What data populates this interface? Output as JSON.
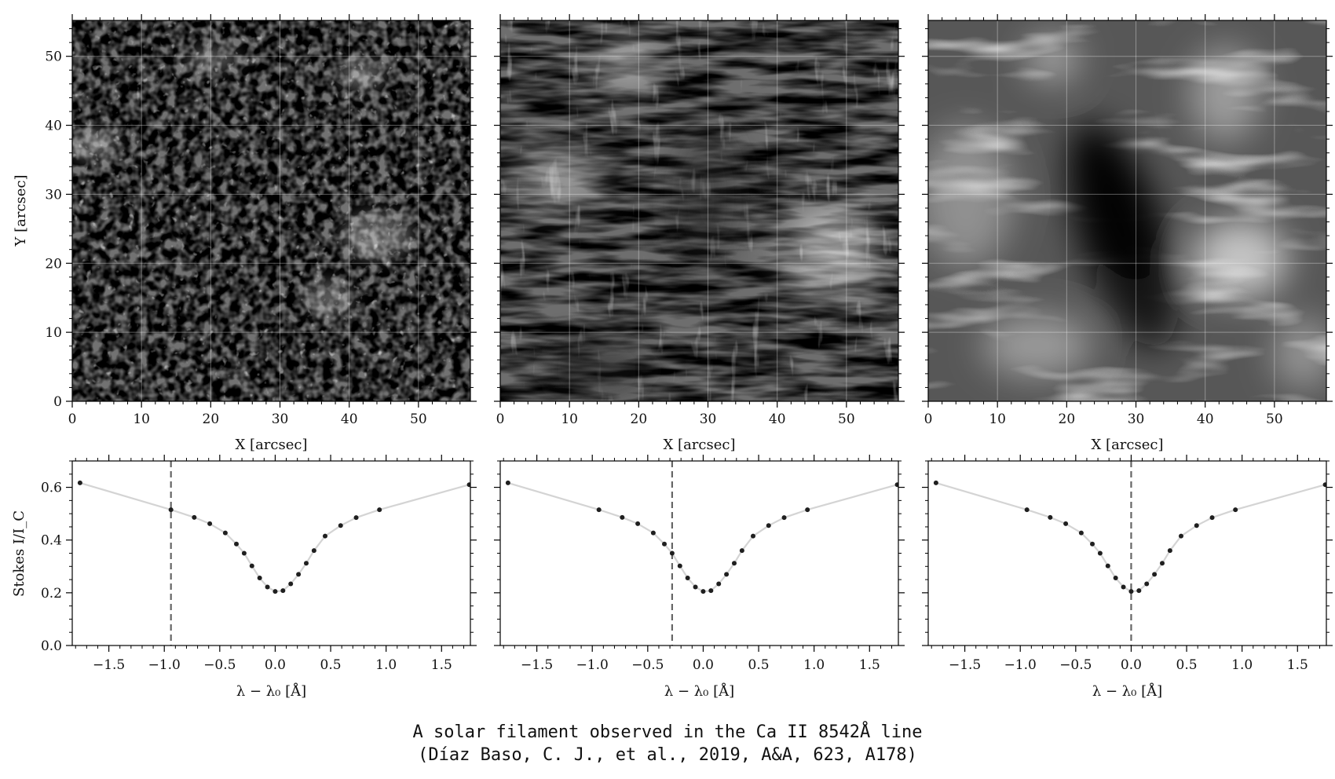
{
  "caption": {
    "line1": "A solar filament observed in the Ca II 8542Å line",
    "line2": "(Díaz Baso, C. J., et al., 2019, A&A, 623, A178)"
  },
  "chart_data": [
    {
      "type": "heatmap",
      "title": "",
      "xlabel": "X [arcsec]",
      "ylabel": "Y [arcsec]",
      "xlim": [
        0,
        57.5
      ],
      "ylim": [
        0,
        55.2
      ],
      "xticks": [
        0,
        10,
        20,
        30,
        40,
        50
      ],
      "yticks": [
        0,
        10,
        20,
        30,
        40,
        50
      ],
      "grid": true,
      "colormap": "gray",
      "wavelength_offset": -0.94,
      "content": "photospheric granulation in the far line wing"
    },
    {
      "type": "heatmap",
      "title": "",
      "xlabel": "X [arcsec]",
      "ylabel": "",
      "xlim": [
        0,
        57.5
      ],
      "ylim": [
        0,
        55.2
      ],
      "xticks": [
        0,
        10,
        20,
        30,
        40,
        50
      ],
      "yticks": [
        0,
        10,
        20,
        30,
        40,
        50
      ],
      "grid": true,
      "colormap": "gray",
      "wavelength_offset": -0.28,
      "content": "chromospheric fibrils in the inner line wing"
    },
    {
      "type": "heatmap",
      "title": "",
      "xlabel": "X [arcsec]",
      "ylabel": "",
      "xlim": [
        0,
        57.5
      ],
      "ylim": [
        0,
        55.2
      ],
      "xticks": [
        0,
        10,
        20,
        30,
        40,
        50
      ],
      "yticks": [
        0,
        10,
        20,
        30,
        40,
        50
      ],
      "grid": true,
      "colormap": "gray",
      "wavelength_offset": 0.0,
      "content": "line core showing the dark filament near the centre"
    },
    {
      "type": "line",
      "xlabel": "λ − λ₀ [Å]",
      "ylabel": "Stokes I/I_C",
      "xlim": [
        -1.83,
        1.76
      ],
      "ylim": [
        0,
        0.7
      ],
      "xticks": [
        -1.5,
        -1.0,
        -0.5,
        0.0,
        0.5,
        1.0,
        1.5
      ],
      "xtick_labels": [
        "−1.5",
        "−1.0",
        "−0.5",
        "0.0",
        "0.5",
        "1.0",
        "1.5"
      ],
      "yticks": [
        0.0,
        0.2,
        0.4,
        0.6
      ],
      "ytick_labels": [
        "0.0",
        "0.2",
        "0.4",
        "0.6"
      ],
      "series": [
        {
          "x": [
            -1.76,
            -0.94,
            -0.73,
            -0.59,
            -0.45,
            -0.35,
            -0.28,
            -0.21,
            -0.14,
            -0.07,
            0.0,
            0.07,
            0.14,
            0.21,
            0.28,
            0.35,
            0.45,
            0.59,
            0.73,
            0.94,
            1.75
          ],
          "y": [
            0.617,
            0.515,
            0.486,
            0.462,
            0.427,
            0.385,
            0.35,
            0.302,
            0.256,
            0.222,
            0.205,
            0.208,
            0.234,
            0.27,
            0.312,
            0.36,
            0.415,
            0.455,
            0.485,
            0.515,
            0.61
          ]
        }
      ],
      "vline": -0.94,
      "line_color": "#d4d4d4",
      "marker_color": "#1f1f1f",
      "vline_color": "#666666"
    },
    {
      "type": "line",
      "xlabel": "λ − λ₀ [Å]",
      "ylabel": "",
      "xlim": [
        -1.83,
        1.76
      ],
      "ylim": [
        0,
        0.7
      ],
      "xticks": [
        -1.5,
        -1.0,
        -0.5,
        0.0,
        0.5,
        1.0,
        1.5
      ],
      "xtick_labels": [
        "−1.5",
        "−1.0",
        "−0.5",
        "0.0",
        "0.5",
        "1.0",
        "1.5"
      ],
      "yticks": [
        0.0,
        0.2,
        0.4,
        0.6
      ],
      "series": [
        {
          "x": [
            -1.76,
            -0.94,
            -0.73,
            -0.59,
            -0.45,
            -0.35,
            -0.28,
            -0.21,
            -0.14,
            -0.07,
            0.0,
            0.07,
            0.14,
            0.21,
            0.28,
            0.35,
            0.45,
            0.59,
            0.73,
            0.94,
            1.75
          ],
          "y": [
            0.617,
            0.515,
            0.486,
            0.462,
            0.427,
            0.385,
            0.35,
            0.302,
            0.256,
            0.222,
            0.205,
            0.208,
            0.234,
            0.27,
            0.312,
            0.36,
            0.415,
            0.455,
            0.485,
            0.515,
            0.61
          ]
        }
      ],
      "vline": -0.28,
      "line_color": "#d4d4d4",
      "marker_color": "#1f1f1f",
      "vline_color": "#666666"
    },
    {
      "type": "line",
      "xlabel": "λ − λ₀ [Å]",
      "ylabel": "",
      "xlim": [
        -1.83,
        1.76
      ],
      "ylim": [
        0,
        0.7
      ],
      "xticks": [
        -1.5,
        -1.0,
        -0.5,
        0.0,
        0.5,
        1.0,
        1.5
      ],
      "xtick_labels": [
        "−1.5",
        "−1.0",
        "−0.5",
        "0.0",
        "0.5",
        "1.0",
        "1.5"
      ],
      "yticks": [
        0.0,
        0.2,
        0.4,
        0.6
      ],
      "series": [
        {
          "x": [
            -1.76,
            -0.94,
            -0.73,
            -0.59,
            -0.45,
            -0.35,
            -0.28,
            -0.21,
            -0.14,
            -0.07,
            0.0,
            0.07,
            0.14,
            0.21,
            0.28,
            0.35,
            0.45,
            0.59,
            0.73,
            0.94,
            1.75
          ],
          "y": [
            0.617,
            0.515,
            0.486,
            0.462,
            0.427,
            0.385,
            0.35,
            0.302,
            0.256,
            0.222,
            0.205,
            0.208,
            0.234,
            0.27,
            0.312,
            0.36,
            0.415,
            0.455,
            0.485,
            0.515,
            0.61
          ]
        }
      ],
      "vline": 0.0,
      "line_color": "#d4d4d4",
      "marker_color": "#1f1f1f",
      "vline_color": "#666666"
    }
  ]
}
